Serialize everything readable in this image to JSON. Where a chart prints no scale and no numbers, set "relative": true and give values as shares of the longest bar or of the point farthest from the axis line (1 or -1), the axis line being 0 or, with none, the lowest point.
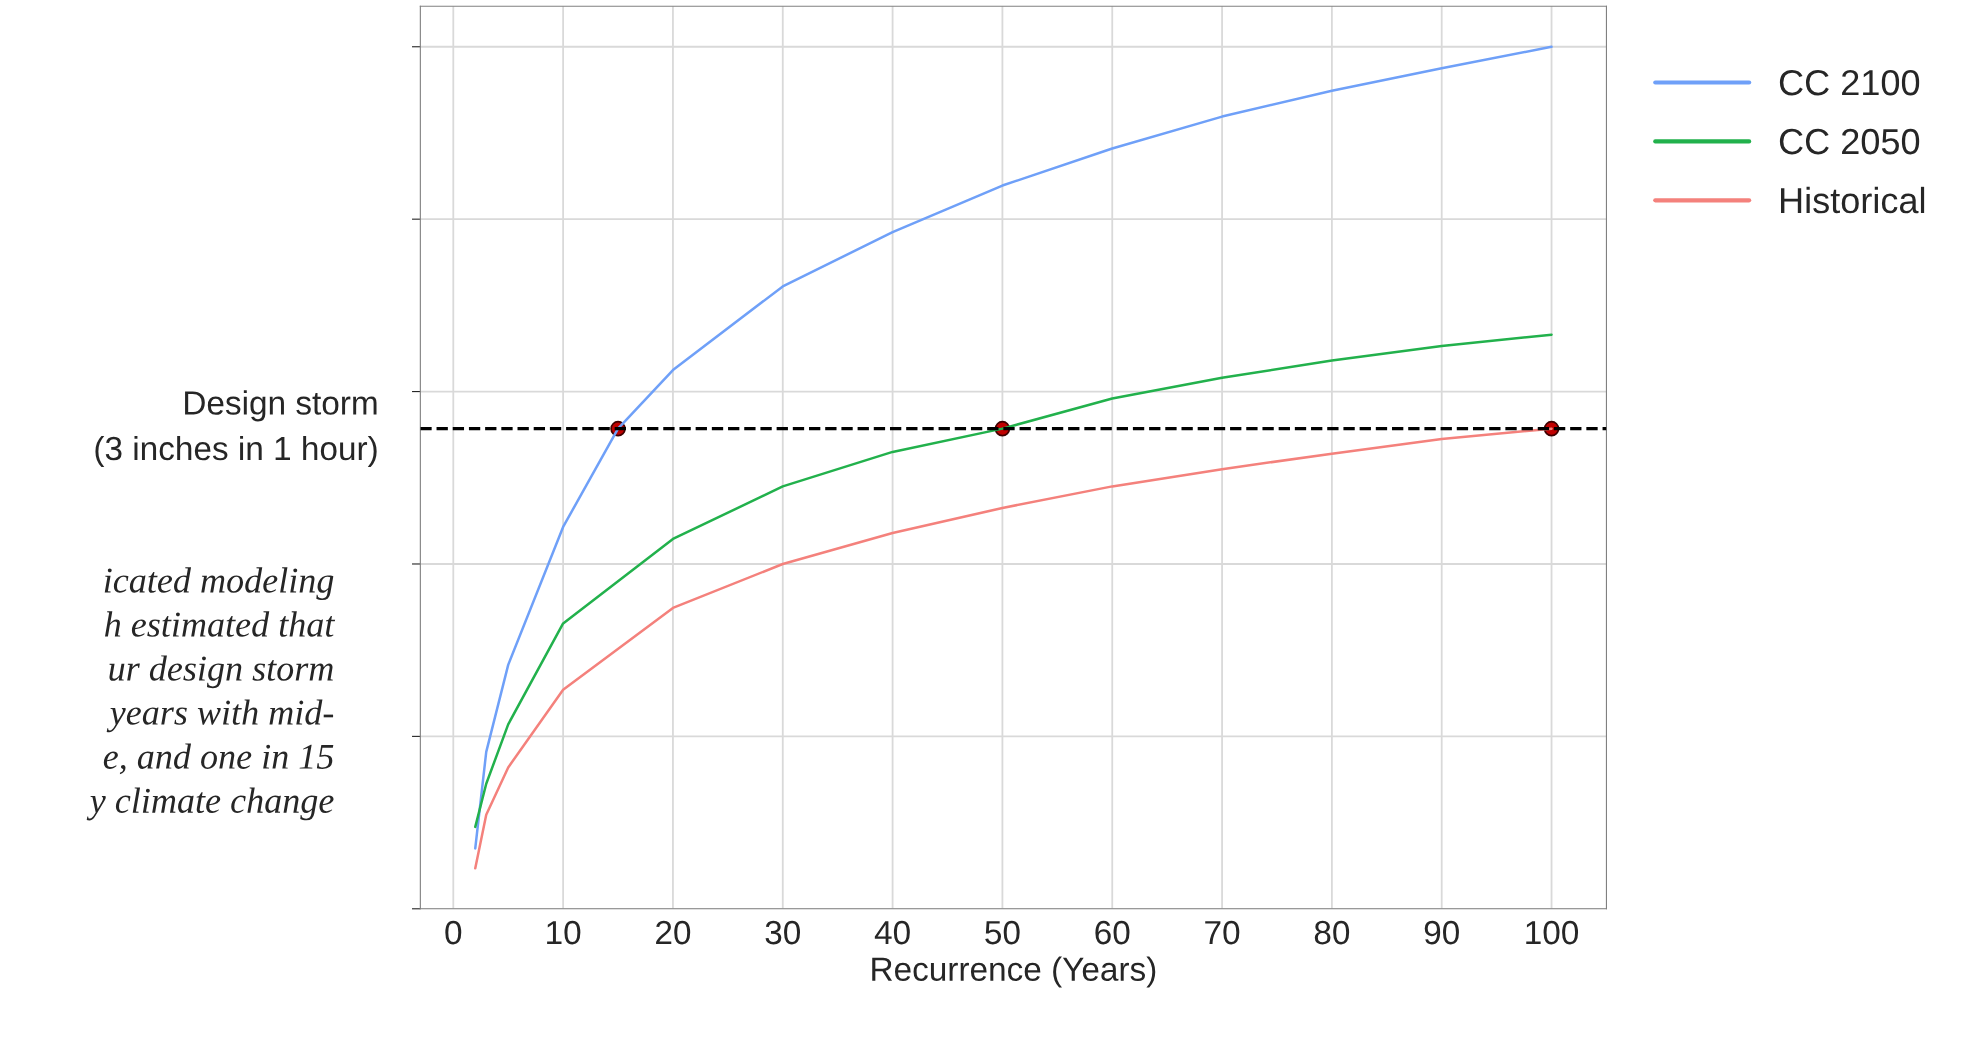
{
  "chart_data": {
    "type": "line",
    "relative": true,
    "xlabel": "Recurrence (Years)",
    "xlim": [
      -3,
      105
    ],
    "xticks": [
      0,
      10,
      20,
      30,
      40,
      50,
      60,
      70,
      80,
      90,
      100
    ],
    "series": [
      {
        "name": "CC 2100",
        "color": "#6fa0f8",
        "x": [
          2,
          3,
          5,
          10,
          15,
          20,
          30,
          40,
          50,
          60,
          70,
          80,
          90,
          100
        ],
        "values": [
          0.07,
          0.182,
          0.283,
          0.443,
          0.557,
          0.625,
          0.722,
          0.785,
          0.839,
          0.882,
          0.919,
          0.949,
          0.975,
          1
        ]
      },
      {
        "name": "CC 2050",
        "color": "#22b14c",
        "x": [
          2,
          3,
          5,
          10,
          20,
          30,
          40,
          50,
          60,
          70,
          80,
          90,
          100
        ],
        "values": [
          0.095,
          0.145,
          0.214,
          0.331,
          0.429,
          0.49,
          0.53,
          0.557,
          0.592,
          0.616,
          0.636,
          0.653,
          0.666
        ]
      },
      {
        "name": "Historical",
        "color": "#f4817c",
        "x": [
          2,
          3,
          5,
          10,
          20,
          30,
          40,
          50,
          60,
          70,
          80,
          90,
          100
        ],
        "values": [
          0.047,
          0.109,
          0.164,
          0.254,
          0.349,
          0.4,
          0.436,
          0.465,
          0.49,
          0.51,
          0.528,
          0.545,
          0.557
        ]
      },
      {
        "type": "scatter",
        "color": "#c00000",
        "marker": "circle",
        "x": [
          15,
          50,
          100
        ],
        "values": [
          0.557,
          0.557,
          0.557
        ]
      }
    ],
    "ref_lines": [
      {
        "axis": "y",
        "value": 0.557,
        "label": "Design storm\n(3 inches in 1 hour)",
        "color": "#000000",
        "line_style": "dashed"
      }
    ],
    "annotations": [
      "icated modeling\nh estimated that\nur design storm\nyears with mid-\ne, and one in 15\ny climate change"
    ],
    "grid": true,
    "legend": "top right"
  }
}
